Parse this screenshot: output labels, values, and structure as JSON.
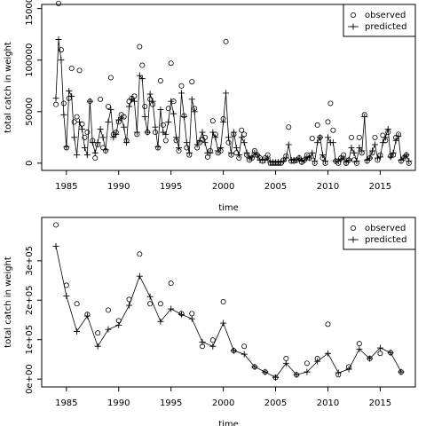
{
  "chart_data": [
    {
      "type": "line",
      "xlabel": "time",
      "ylabel": "total catch in weight",
      "x": [
        1984,
        1984.25,
        1984.5,
        1984.75,
        1985,
        1985.25,
        1985.5,
        1985.75,
        1986,
        1986.25,
        1986.5,
        1986.75,
        1987,
        1987.25,
        1987.5,
        1987.75,
        1988,
        1988.25,
        1988.5,
        1988.75,
        1989,
        1989.25,
        1989.5,
        1989.75,
        1990,
        1990.25,
        1990.5,
        1990.75,
        1991,
        1991.25,
        1991.5,
        1991.75,
        1992,
        1992.25,
        1992.5,
        1992.75,
        1993,
        1993.25,
        1993.5,
        1993.75,
        1994,
        1994.25,
        1994.5,
        1994.75,
        1995,
        1995.25,
        1995.5,
        1995.75,
        1996,
        1996.25,
        1996.5,
        1996.75,
        1997,
        1997.25,
        1997.5,
        1997.75,
        1998,
        1998.25,
        1998.5,
        1998.75,
        1999,
        1999.25,
        1999.5,
        1999.75,
        2000,
        2000.25,
        2000.5,
        2000.75,
        2001,
        2001.25,
        2001.5,
        2001.75,
        2002,
        2002.25,
        2002.5,
        2002.75,
        2003,
        2003.25,
        2003.5,
        2003.75,
        2004,
        2004.25,
        2004.5,
        2004.75,
        2005,
        2005.25,
        2005.5,
        2005.75,
        2006,
        2006.25,
        2006.5,
        2006.75,
        2007,
        2007.25,
        2007.5,
        2007.75,
        2008,
        2008.25,
        2008.5,
        2008.75,
        2009,
        2009.25,
        2009.5,
        2009.75,
        2010,
        2010.25,
        2010.5,
        2010.75,
        2011,
        2011.25,
        2011.5,
        2011.75,
        2012,
        2012.25,
        2012.5,
        2012.75,
        2013,
        2013.25,
        2013.5,
        2013.75,
        2014,
        2014.25,
        2014.5,
        2014.75,
        2015,
        2015.25,
        2015.5,
        2015.75,
        2016,
        2016.25,
        2016.5,
        2016.75,
        2017,
        2017.25,
        2017.5,
        2017.75
      ],
      "series": [
        {
          "name": "observed",
          "color": "#000000",
          "marker": "circle",
          "line": false,
          "values": [
            57000,
            155000,
            110000,
            58000,
            15000,
            63000,
            92000,
            40000,
            45000,
            90000,
            38000,
            25000,
            30000,
            60000,
            22000,
            5000,
            18000,
            62000,
            15000,
            12000,
            55000,
            83000,
            28000,
            30000,
            40000,
            47000,
            45000,
            22000,
            60000,
            63000,
            65000,
            28000,
            113000,
            95000,
            55000,
            30000,
            62000,
            57000,
            30000,
            15000,
            80000,
            37000,
            22000,
            53000,
            97000,
            60000,
            22000,
            12000,
            75000,
            46000,
            15000,
            8000,
            79000,
            53000,
            15000,
            20000,
            23000,
            25000,
            6000,
            12000,
            41000,
            28000,
            10000,
            12000,
            43000,
            118000,
            20000,
            8000,
            28000,
            10000,
            5000,
            32000,
            28000,
            8000,
            3000,
            5000,
            12000,
            8000,
            5000,
            2000,
            5000,
            8000,
            0,
            0,
            0,
            0,
            0,
            3000,
            7000,
            35000,
            2000,
            2000,
            3000,
            5000,
            1000,
            3000,
            8000,
            5000,
            24000,
            0,
            37000,
            25000,
            5000,
            0,
            40000,
            58000,
            32000,
            2000,
            0,
            5000,
            8000,
            0,
            3000,
            25000,
            3000,
            0,
            25000,
            10000,
            47000,
            2000,
            5000,
            10000,
            25000,
            3000,
            8000,
            27000,
            22000,
            30000,
            7000,
            8000,
            25000,
            28000,
            2000,
            5000,
            8000,
            0
          ]
        },
        {
          "name": "predicted",
          "color": "#000000",
          "marker": "plus",
          "line": true,
          "values": [
            63000,
            120000,
            100000,
            47000,
            16000,
            70000,
            65000,
            25000,
            8000,
            40000,
            33000,
            15000,
            8000,
            60000,
            20000,
            10000,
            20000,
            33000,
            25000,
            13000,
            40000,
            52000,
            25000,
            28000,
            42000,
            44000,
            35000,
            20000,
            55000,
            62000,
            60000,
            30000,
            85000,
            82000,
            45000,
            30000,
            67000,
            60000,
            35000,
            16000,
            52000,
            30000,
            28000,
            40000,
            60000,
            48000,
            25000,
            15000,
            68000,
            45000,
            20000,
            10000,
            62000,
            50000,
            18000,
            22000,
            30000,
            20000,
            10000,
            10000,
            30000,
            25000,
            12000,
            15000,
            40000,
            68000,
            25000,
            10000,
            30000,
            15000,
            8000,
            25000,
            20000,
            10000,
            5000,
            6000,
            10000,
            8000,
            3000,
            3000,
            3000,
            5000,
            1000,
            1000,
            1000,
            1000,
            1000,
            2000,
            5000,
            18000,
            3000,
            3000,
            3000,
            5000,
            2000,
            3000,
            6000,
            5000,
            10000,
            2000,
            20000,
            25000,
            8000,
            2000,
            25000,
            20000,
            20000,
            2000,
            2000,
            4000,
            5000,
            1000,
            3000,
            15000,
            10000,
            2000,
            15000,
            12000,
            45000,
            3000,
            5000,
            12000,
            18000,
            5000,
            6000,
            20000,
            25000,
            33000,
            6000,
            10000,
            22000,
            26000,
            3000,
            5000,
            8000,
            2000
          ]
        }
      ],
      "xlim": [
        1982.64,
        2018.36
      ],
      "xticks": [
        1985,
        1990,
        1995,
        2000,
        2005,
        2010,
        2015
      ],
      "ylim": [
        -7000,
        154000
      ],
      "yticks": [
        0,
        50000,
        100000,
        150000
      ],
      "legend": "upper right"
    },
    {
      "type": "line",
      "xlabel": "time",
      "ylabel": "total catch in weight",
      "x": [
        1984,
        1985,
        1986,
        1987,
        1988,
        1989,
        1990,
        1991,
        1992,
        1993,
        1994,
        1995,
        1996,
        1997,
        1998,
        1999,
        2000,
        2001,
        2002,
        2003,
        2004,
        2005,
        2006,
        2007,
        2008,
        2009,
        2010,
        2011,
        2012,
        2013,
        2014,
        2015,
        2016,
        2017
      ],
      "series": [
        {
          "name": "observed",
          "color": "#000000",
          "marker": "circle",
          "line": false,
          "values": [
            391000,
            238000,
            191000,
            164000,
            117000,
            175000,
            148000,
            202000,
            317000,
            191000,
            191000,
            243000,
            166000,
            166000,
            83000,
            99000,
            196000,
            72000,
            83000,
            31000,
            18000,
            4000,
            52000,
            11000,
            40000,
            52000,
            139000,
            11000,
            31000,
            90000,
            52000,
            65000,
            67000,
            18000
          ]
        },
        {
          "name": "predicted",
          "color": "#000000",
          "marker": "plus",
          "line": true,
          "values": [
            337000,
            211000,
            121000,
            160000,
            83000,
            126000,
            137000,
            187000,
            261000,
            209000,
            146000,
            178000,
            164000,
            153000,
            94000,
            83000,
            142000,
            72000,
            63000,
            31000,
            18000,
            4000,
            40000,
            11000,
            18000,
            45000,
            65000,
            16000,
            25000,
            76000,
            52000,
            79000,
            67000,
            18000
          ]
        }
      ],
      "xlim": [
        1982.64,
        2018.36
      ],
      "xticks": [
        1985,
        1990,
        1995,
        2000,
        2005,
        2010,
        2015
      ],
      "ylim": [
        -20000,
        410000
      ],
      "yticks": [
        {
          "value": 0,
          "label": "0e+00"
        },
        {
          "value": 100000,
          "label": "1e+05"
        },
        {
          "value": 200000,
          "label": "2e+05"
        },
        {
          "value": 300000,
          "label": "3e+05"
        }
      ],
      "legend": "upper right"
    }
  ]
}
